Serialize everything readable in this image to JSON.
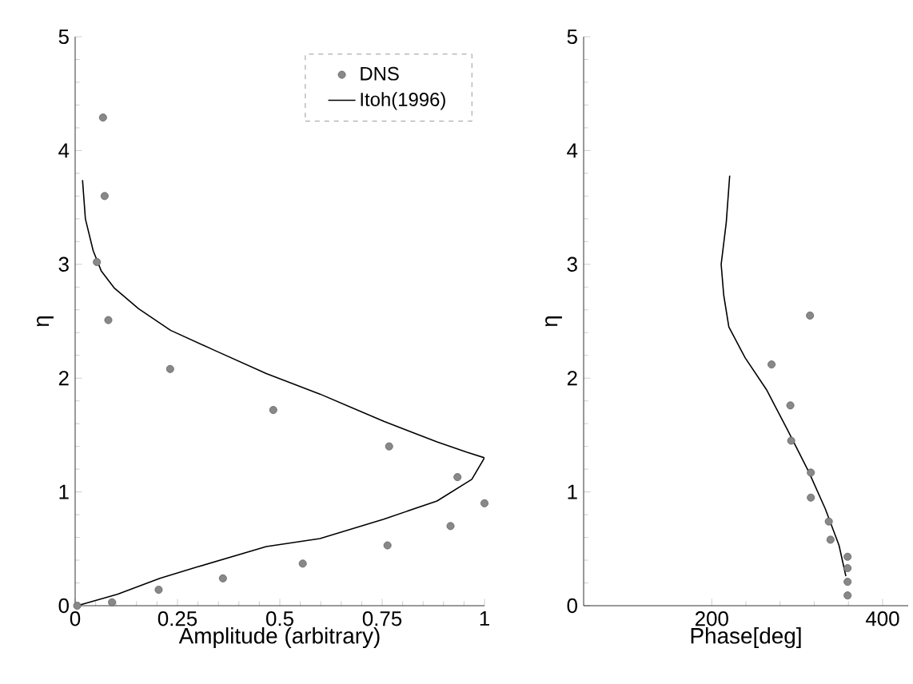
{
  "chart_data": [
    {
      "type": "line",
      "xlabel": "Amplitude (arbitrary)",
      "ylabel": "η",
      "xlim": [
        0,
        1
      ],
      "ylim": [
        0,
        5
      ],
      "xticks": [
        0,
        0.25,
        0.5,
        0.75,
        1
      ],
      "yticks": [
        0,
        1,
        2,
        3,
        4,
        5
      ],
      "legend": "top right",
      "grid": false,
      "series": [
        {
          "name": "DNS",
          "type": "scatter",
          "marker": "circle",
          "color": "#888888",
          "x": [
            0.068,
            0.072,
            0.053,
            0.081,
            0.232,
            0.484,
            0.767,
            0.934,
            1.0,
            0.917,
            0.763,
            0.556,
            0.361,
            0.204,
            0.09,
            0.005
          ],
          "values": [
            4.29,
            3.6,
            3.02,
            2.51,
            2.08,
            1.72,
            1.4,
            1.13,
            0.9,
            0.7,
            0.53,
            0.37,
            0.24,
            0.14,
            0.03,
            0.0
          ]
        },
        {
          "name": "Itoh(1996)",
          "type": "line",
          "marker": "none",
          "line_style": "solid",
          "color": "#000000",
          "x": [
            0.018,
            0.025,
            0.044,
            0.064,
            0.096,
            0.155,
            0.233,
            0.337,
            0.467,
            0.598,
            0.754,
            0.884,
            0.956,
            1.0,
            0.969,
            0.884,
            0.754,
            0.598,
            0.467,
            0.298,
            0.207,
            0.103,
            0.005
          ],
          "values": [
            3.74,
            3.4,
            3.12,
            2.94,
            2.79,
            2.61,
            2.42,
            2.25,
            2.04,
            1.86,
            1.62,
            1.44,
            1.35,
            1.3,
            1.11,
            0.92,
            0.76,
            0.59,
            0.52,
            0.34,
            0.24,
            0.1,
            0.0
          ]
        }
      ]
    },
    {
      "type": "line",
      "xlabel": "Phase[deg]",
      "ylabel": "η",
      "xlim": [
        50,
        430
      ],
      "ylim": [
        0,
        5
      ],
      "xticks": [
        200,
        400
      ],
      "yticks": [
        0,
        1,
        2,
        3,
        4,
        5
      ],
      "legend": false,
      "grid": false,
      "series": [
        {
          "type": "scatter",
          "marker": "circle",
          "color": "#888888",
          "x": [
            315,
            270,
            292,
            293,
            316,
            316,
            337,
            339,
            359,
            359,
            359,
            359
          ],
          "values": [
            2.55,
            2.12,
            1.76,
            1.45,
            1.17,
            0.95,
            0.74,
            0.58,
            0.43,
            0.33,
            0.21,
            0.09
          ]
        },
        {
          "type": "line",
          "marker": "none",
          "line_style": "solid",
          "color": "#000000",
          "x": [
            221,
            217,
            211,
            214,
            220,
            239,
            264,
            289,
            314,
            333,
            349,
            357
          ],
          "values": [
            3.78,
            3.37,
            3.0,
            2.73,
            2.45,
            2.18,
            1.9,
            1.54,
            1.17,
            0.85,
            0.53,
            0.26
          ]
        }
      ]
    }
  ]
}
